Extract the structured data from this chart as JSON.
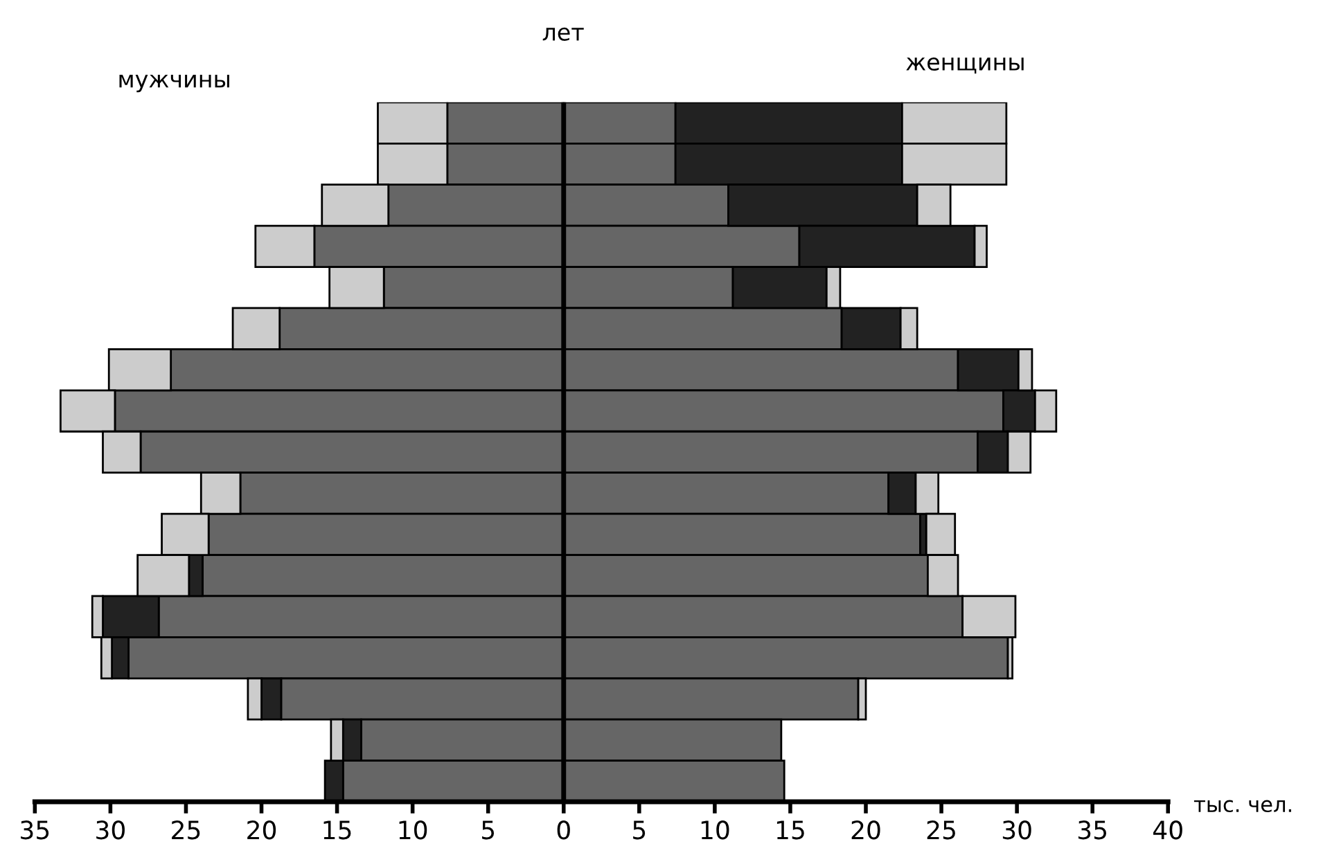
{
  "chart_data": {
    "type": "bar",
    "orientation": "horizontal",
    "stacked": true,
    "categories": [
      null,
      null,
      null,
      null,
      null,
      null,
      null,
      null,
      null,
      null,
      null,
      null,
      null,
      null,
      null,
      null,
      null
    ],
    "series": [
      {
        "color": "#666666",
        "values": [
          -7.7,
          -7.7,
          -11.6,
          -16.5,
          -11.9,
          -18.8,
          -26.0,
          -29.7,
          -28.0,
          -21.4,
          -23.5,
          -23.9,
          -26.8,
          -28.8,
          -18.7,
          -13.4,
          -14.6
        ]
      },
      {
        "color": "#222222",
        "values": [
          0,
          0,
          0,
          0,
          0,
          0,
          0,
          0,
          0,
          0,
          0,
          -0.9,
          -3.7,
          -1.1,
          -1.3,
          -1.2,
          -1.2
        ]
      },
      {
        "color": "#cccccc",
        "values": [
          -4.6,
          -4.6,
          -4.4,
          -3.9,
          -3.6,
          -3.1,
          -4.1,
          -3.6,
          -2.5,
          -2.6,
          -3.1,
          -3.4,
          -0.7,
          -0.7,
          -0.9,
          -0.8,
          0
        ]
      },
      {
        "color": "#666666",
        "values": [
          7.4,
          7.4,
          10.9,
          15.6,
          11.2,
          18.4,
          26.1,
          29.1,
          27.4,
          21.5,
          23.6,
          24.1,
          26.4,
          29.4,
          19.5,
          14.4,
          14.6
        ]
      },
      {
        "color": "#222222",
        "values": [
          15.0,
          15.0,
          12.5,
          11.6,
          6.2,
          3.9,
          4.0,
          2.1,
          2.0,
          1.8,
          0.4,
          0,
          0,
          0,
          0,
          0,
          0
        ]
      },
      {
        "color": "#cccccc",
        "values": [
          6.9,
          6.9,
          2.2,
          0.8,
          0.9,
          1.1,
          0.9,
          1.4,
          1.5,
          1.5,
          1.9,
          2.0,
          3.5,
          0.3,
          0.5,
          0,
          0
        ]
      }
    ],
    "xlim": [
      -35,
      40
    ],
    "xticks": [
      {
        "value": -35,
        "label": "35"
      },
      {
        "value": -30,
        "label": "30"
      },
      {
        "value": -25,
        "label": "25"
      },
      {
        "value": -20,
        "label": "20"
      },
      {
        "value": -15,
        "label": "15"
      },
      {
        "value": -10,
        "label": "10"
      },
      {
        "value": -5,
        "label": "5"
      },
      0,
      5,
      10,
      15,
      20,
      25,
      30,
      35,
      40
    ],
    "xlabel": "тыс. чел.",
    "ref_lines": [
      {
        "axis": "x",
        "value": 0
      }
    ],
    "annotations": [
      "лет",
      "мужчины",
      "женщины"
    ],
    "tick_labels": "x",
    "grid": false
  }
}
